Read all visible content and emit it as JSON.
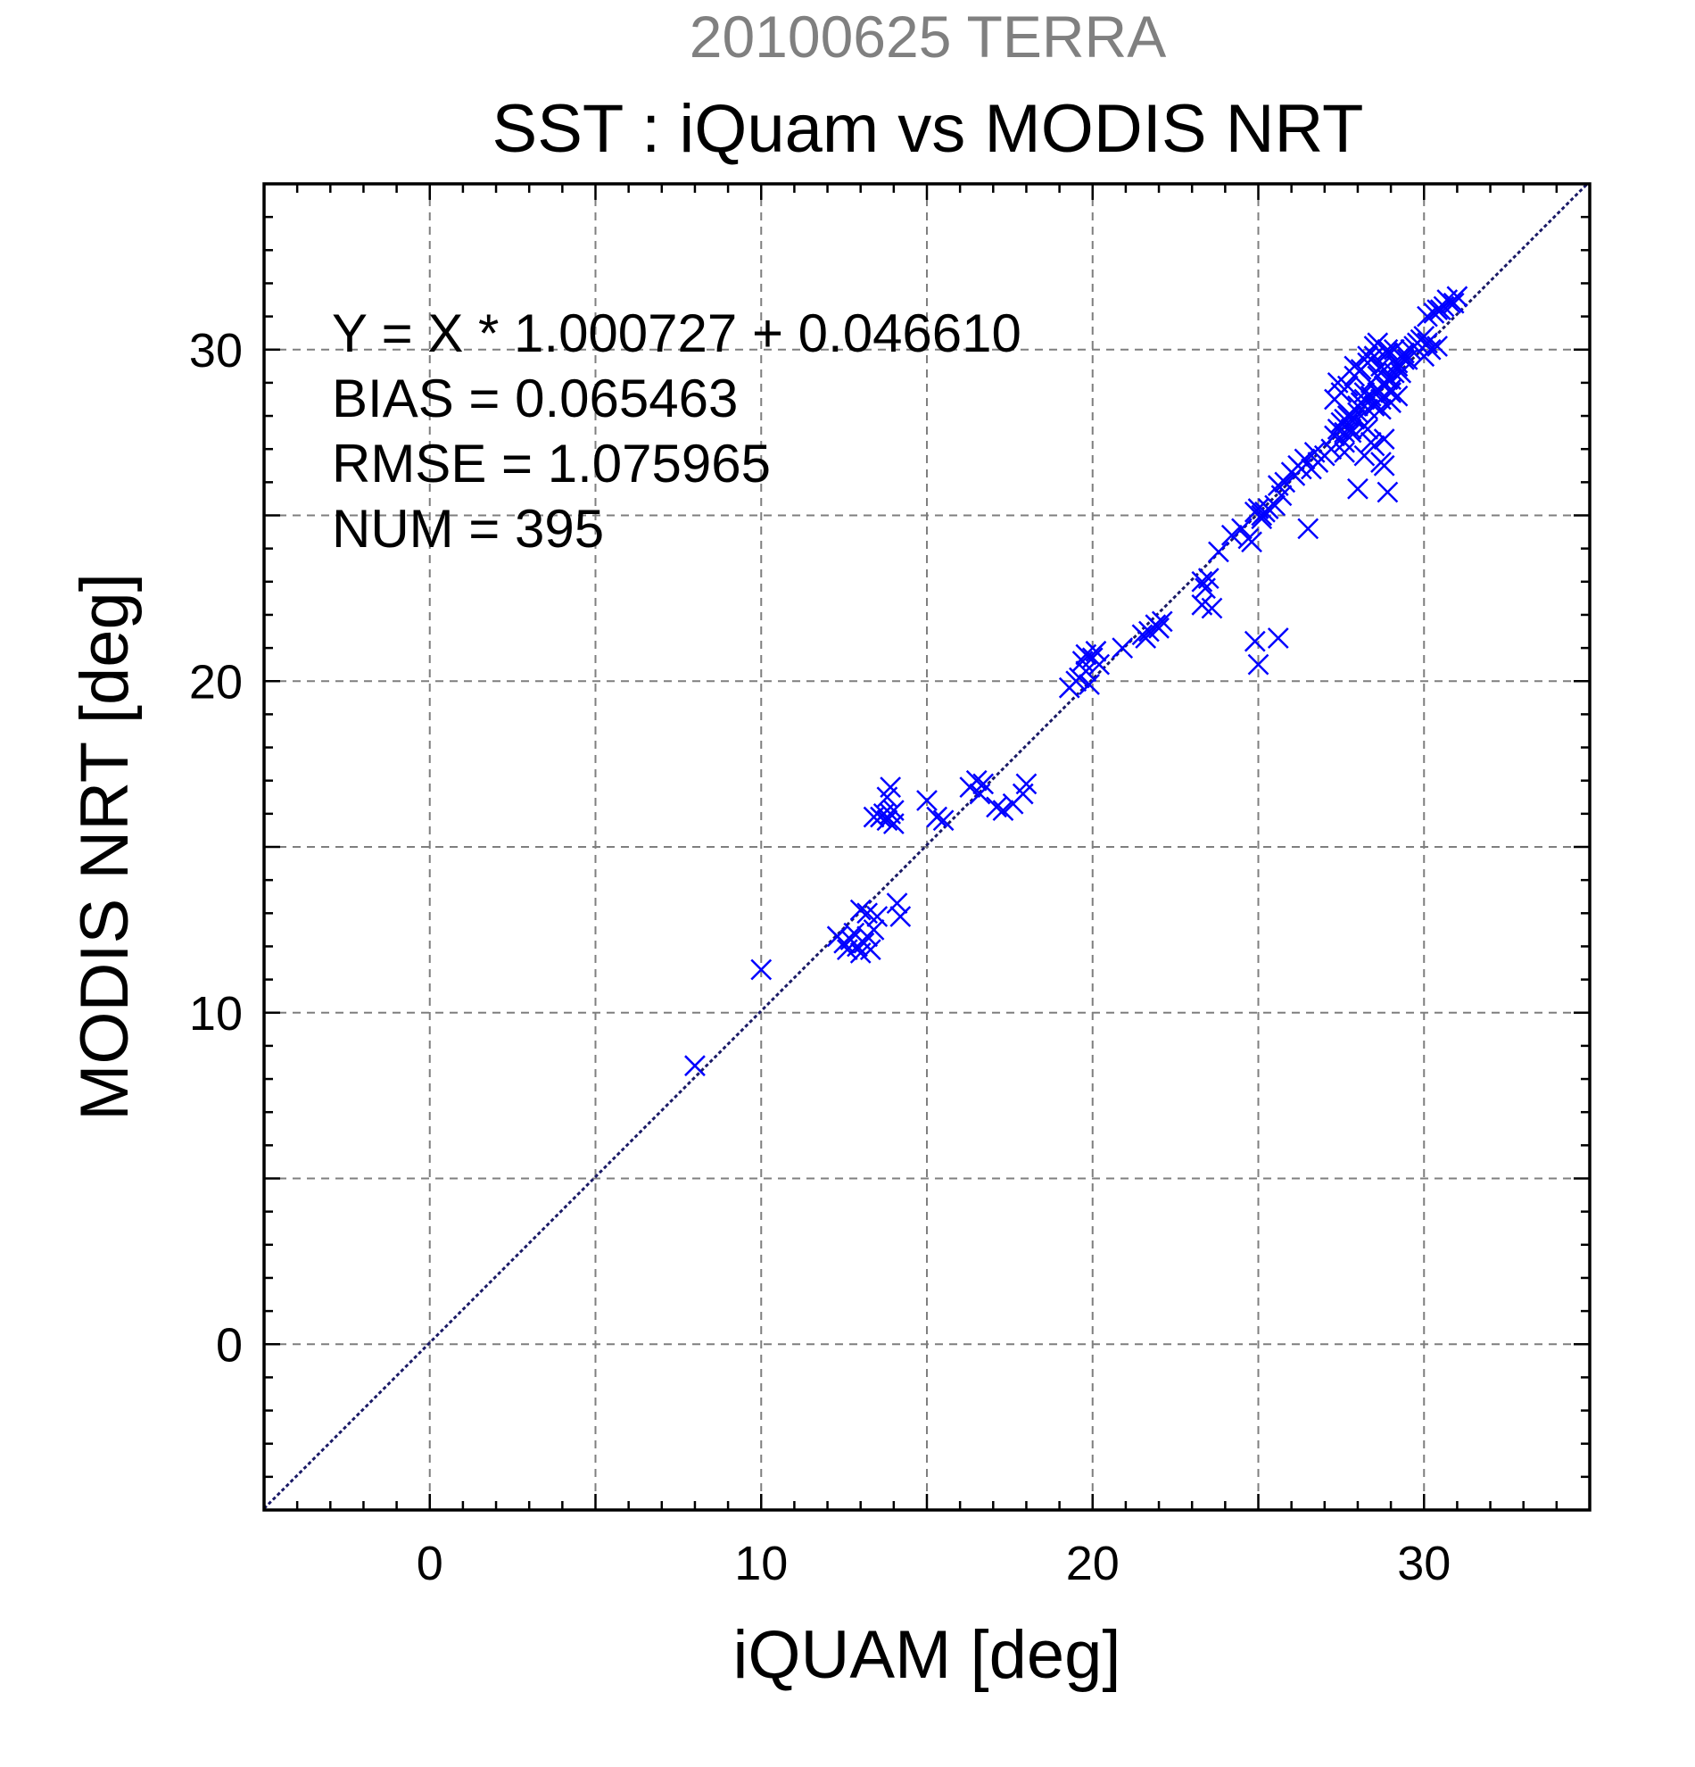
{
  "chart_data": {
    "type": "scatter",
    "supertitle": "20100625 TERRA",
    "title": "SST : iQuam vs MODIS NRT",
    "xlabel": "iQUAM [deg]",
    "ylabel": "MODIS NRT [deg]",
    "xlim": [
      -5,
      35
    ],
    "ylim": [
      -5,
      35
    ],
    "xticks": [
      0,
      10,
      20,
      30
    ],
    "yticks": [
      0,
      10,
      20,
      30
    ],
    "grid": true,
    "marker": "x",
    "marker_color": "#0000ff",
    "fit_line_color": "#1a1a66",
    "stats": [
      "Y = X * 1.000727 + 0.046610",
      "BIAS = 0.065463",
      "RMSE = 1.075965",
      "NUM = 395"
    ],
    "fit": {
      "slope": 1.000727,
      "intercept": 0.04661
    },
    "series": [
      {
        "x": [
          8.0,
          10.0,
          12.3,
          12.5,
          12.6,
          12.7,
          12.8,
          12.9,
          13.0,
          13.1,
          13.2,
          13.3,
          13.4,
          13.0,
          13.2,
          13.5,
          13.6,
          13.7,
          13.8,
          13.9,
          14.0,
          13.8,
          13.9,
          14.1,
          14.2,
          13.4,
          14.0,
          15.0,
          15.3,
          15.5,
          16.3,
          16.5,
          16.7,
          16.6,
          17.1,
          17.3,
          17.6,
          17.9,
          18.0,
          19.3,
          19.5,
          19.7,
          19.8,
          19.9,
          20.0,
          20.2,
          19.6,
          20.1,
          19.8,
          20.9,
          21.5,
          21.7,
          21.9,
          22.0,
          22.1,
          21.6,
          23.3,
          23.4,
          23.3,
          23.5,
          23.6,
          23.8,
          24.2,
          24.5,
          24.7,
          24.8,
          24.9,
          25.0,
          25.1,
          25.2,
          25.3,
          25.5,
          25.1,
          24.9,
          25.0,
          25.6,
          25.7,
          25.8,
          26.0,
          26.2,
          26.4,
          26.6,
          26.8,
          27.0,
          26.5,
          25.6,
          26.1,
          26.3,
          26.7,
          27.2,
          27.3,
          27.4,
          27.5,
          27.6,
          27.7,
          27.8,
          27.9,
          28.0,
          28.1,
          28.2,
          28.3,
          28.4,
          28.5,
          28.6,
          28.7,
          28.8,
          28.9,
          29.0,
          27.3,
          27.5,
          27.7,
          27.9,
          28.1,
          28.3,
          28.5,
          28.7,
          28.9,
          29.1,
          27.6,
          27.8,
          28.0,
          28.2,
          28.4,
          28.6,
          28.8,
          29.0,
          29.2,
          27.4,
          27.9,
          28.4,
          28.9,
          29.4,
          27.8,
          28.2,
          28.6,
          29.0,
          29.3,
          29.5,
          29.7,
          29.9,
          30.1,
          29.6,
          29.8,
          30.0,
          29.2,
          29.4,
          28.3,
          28.6,
          28.9,
          29.1,
          28.7,
          29.0,
          28.2,
          28.5,
          28.8,
          28.4,
          28.7,
          28.0,
          28.3,
          27.6,
          28.9,
          28.5,
          29.2,
          28.8,
          30.0,
          30.2,
          30.4,
          30.6,
          30.8,
          30.5,
          30.3,
          30.7,
          30.9,
          31.0,
          30.4,
          30.1,
          28.5,
          27.6
        ],
        "y": [
          8.4,
          11.3,
          12.3,
          12.1,
          11.9,
          12.2,
          12.4,
          12.0,
          11.8,
          12.1,
          12.3,
          11.9,
          12.5,
          13.1,
          13.0,
          12.9,
          15.9,
          16.0,
          15.8,
          16.0,
          16.1,
          16.5,
          16.8,
          13.3,
          12.9,
          15.9,
          15.7,
          16.4,
          15.9,
          15.8,
          16.8,
          17.0,
          16.9,
          16.6,
          16.2,
          16.1,
          16.3,
          16.6,
          16.9,
          19.8,
          20.0,
          20.6,
          20.3,
          19.9,
          20.7,
          20.5,
          20.1,
          20.9,
          20.8,
          21.0,
          21.4,
          21.5,
          21.7,
          21.6,
          21.8,
          21.3,
          23.0,
          22.8,
          22.3,
          23.1,
          22.2,
          23.9,
          24.4,
          24.6,
          24.3,
          24.2,
          25.1,
          25.2,
          25.0,
          25.1,
          25.2,
          25.3,
          24.9,
          21.2,
          20.5,
          21.3,
          25.6,
          26.0,
          26.3,
          26.5,
          26.7,
          26.4,
          26.6,
          26.8,
          24.6,
          25.9,
          26.2,
          26.4,
          26.9,
          27.0,
          27.4,
          27.6,
          27.8,
          27.2,
          28.0,
          27.5,
          27.9,
          28.1,
          28.4,
          27.7,
          28.2,
          28.6,
          28.3,
          28.8,
          28.5,
          28.9,
          29.1,
          28.7,
          28.5,
          28.7,
          28.9,
          29.2,
          29.4,
          29.6,
          29.8,
          29.5,
          29.9,
          29.3,
          27.9,
          27.6,
          28.3,
          28.7,
          29.0,
          29.2,
          29.4,
          28.8,
          29.6,
          29.0,
          29.5,
          29.7,
          30.0,
          29.9,
          28.0,
          28.5,
          28.7,
          29.1,
          29.3,
          29.7,
          30.1,
          30.3,
          30.2,
          30.0,
          30.2,
          30.4,
          29.5,
          29.7,
          29.8,
          30.2,
          29.9,
          30.0,
          28.2,
          28.4,
          26.8,
          27.1,
          26.5,
          27.2,
          26.6,
          25.8,
          27.6,
          26.9,
          25.7,
          28.3,
          28.6,
          27.3,
          29.8,
          30.0,
          30.1,
          31.3,
          31.4,
          31.2,
          31.1,
          31.5,
          31.4,
          31.6,
          31.2,
          31.0,
          30.1,
          27.5
        ]
      }
    ]
  }
}
